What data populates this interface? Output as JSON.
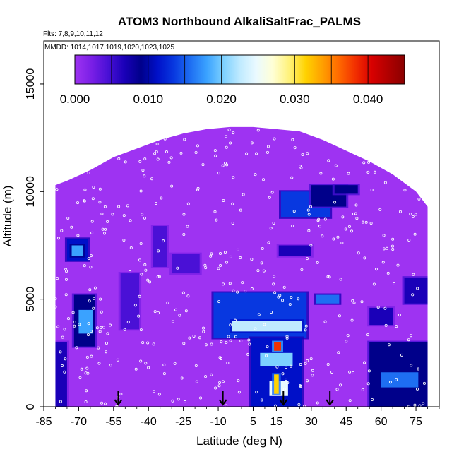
{
  "chart_data": {
    "type": "heatmap",
    "title": "ATOM3 Northbound AlkaliSaltFrac_PALMS",
    "subtitle_flights": "Flts: 7,8,9,10,11,12",
    "subtitle_dates": "MMDD: 1014,1017,1019,1020,1023,1025",
    "xlabel": "Latitude (deg N)",
    "ylabel": "Altitude (m)",
    "xlim": [
      -85,
      85
    ],
    "ylim": [
      0,
      17000
    ],
    "x_ticks": [
      -85,
      -70,
      -55,
      -40,
      -25,
      -10,
      5,
      15,
      30,
      45,
      60,
      75
    ],
    "x_tick_labels": [
      "-85",
      "-70",
      "-55",
      "-40",
      "-25",
      "-10",
      "5",
      "15",
      "30",
      "45",
      "60",
      "75"
    ],
    "y_ticks": [
      0,
      5000,
      10000,
      15000
    ],
    "y_tick_labels": [
      "0",
      "5000",
      "10000",
      "15000"
    ],
    "colorbar": {
      "min": 0.0,
      "max": 0.045,
      "ticks": [
        0.0,
        0.01,
        0.02,
        0.03,
        0.04
      ],
      "tick_labels": [
        "0.000",
        "0.010",
        "0.020",
        "0.030",
        "0.040"
      ],
      "colors": [
        "#9e33f2",
        "#7a1fe6",
        "#4a10d6",
        "#1a00b8",
        "#00008a",
        "#0010c8",
        "#0838e0",
        "#1e6ef2",
        "#3aa2ff",
        "#7cd0ff",
        "#bfeaff",
        "#eafaff",
        "#ffffd6",
        "#fff27a",
        "#ffd200",
        "#ffa000",
        "#ff6a00",
        "#f23000",
        "#d80000",
        "#b00000",
        "#8a0000"
      ]
    },
    "background_value": 0.001,
    "envelope_top_m": [
      [
        -80,
        10300
      ],
      [
        -75,
        10500
      ],
      [
        -65,
        11000
      ],
      [
        -55,
        11600
      ],
      [
        -45,
        12000
      ],
      [
        -35,
        12400
      ],
      [
        -25,
        12700
      ],
      [
        -15,
        12900
      ],
      [
        -5,
        13000
      ],
      [
        5,
        13000
      ],
      [
        15,
        12900
      ],
      [
        25,
        12800
      ],
      [
        35,
        12400
      ],
      [
        45,
        11900
      ],
      [
        55,
        11400
      ],
      [
        65,
        10800
      ],
      [
        75,
        10000
      ],
      [
        80,
        9300
      ]
    ],
    "features": [
      {
        "lat": [
          -72,
          -63
        ],
        "alt": [
          2800,
          5200
        ],
        "value": 0.009
      },
      {
        "lat": [
          -70,
          -64
        ],
        "alt": [
          3400,
          4500
        ],
        "value": 0.018
      },
      {
        "lat": [
          -75,
          -66
        ],
        "alt": [
          6800,
          7800
        ],
        "value": 0.012
      },
      {
        "lat": [
          -73,
          -68
        ],
        "alt": [
          7000,
          7500
        ],
        "value": 0.019
      },
      {
        "lat": [
          -80,
          -75
        ],
        "alt": [
          0,
          3000
        ],
        "value": 0.006
      },
      {
        "lat": [
          -52,
          -44
        ],
        "alt": [
          3600,
          6200
        ],
        "value": 0.005
      },
      {
        "lat": [
          -38,
          -32
        ],
        "alt": [
          6500,
          8400
        ],
        "value": 0.004
      },
      {
        "lat": [
          -30,
          -18
        ],
        "alt": [
          6200,
          7100
        ],
        "value": 0.005
      },
      {
        "lat": [
          -12,
          28
        ],
        "alt": [
          3200,
          5300
        ],
        "value": 0.013
      },
      {
        "lat": [
          -4,
          26
        ],
        "alt": [
          3500,
          4000
        ],
        "value": 0.022
      },
      {
        "lat": [
          4,
          26
        ],
        "alt": [
          0,
          3200
        ],
        "value": 0.012
      },
      {
        "lat": [
          8,
          22
        ],
        "alt": [
          1900,
          2500
        ],
        "value": 0.021
      },
      {
        "lat": [
          12,
          20
        ],
        "alt": [
          500,
          1200
        ],
        "value": 0.024
      },
      {
        "lat": [
          14,
          16
        ],
        "alt": [
          600,
          1500
        ],
        "value": 0.032
      },
      {
        "lat": [
          14,
          17
        ],
        "alt": [
          2600,
          3000
        ],
        "value": 0.038
      },
      {
        "lat": [
          16,
          30
        ],
        "alt": [
          7000,
          7500
        ],
        "value": 0.006
      },
      {
        "lat": [
          17,
          38
        ],
        "alt": [
          8800,
          10000
        ],
        "value": 0.014
      },
      {
        "lat": [
          30,
          45
        ],
        "alt": [
          9300,
          10300
        ],
        "value": 0.008
      },
      {
        "lat": [
          32,
          42
        ],
        "alt": [
          4800,
          5200
        ],
        "value": 0.015
      },
      {
        "lat": [
          40,
          50
        ],
        "alt": [
          9900,
          10300
        ],
        "value": 0.009
      },
      {
        "lat": [
          55,
          80
        ],
        "alt": [
          0,
          3000
        ],
        "value": 0.008
      },
      {
        "lat": [
          60,
          76
        ],
        "alt": [
          900,
          1600
        ],
        "value": 0.016
      },
      {
        "lat": [
          70,
          80
        ],
        "alt": [
          4800,
          6000
        ],
        "value": 0.007
      },
      {
        "lat": [
          55,
          65
        ],
        "alt": [
          3800,
          4600
        ],
        "value": 0.006
      }
    ],
    "arrow_latitudes": [
      -53,
      -8,
      18,
      38
    ]
  }
}
